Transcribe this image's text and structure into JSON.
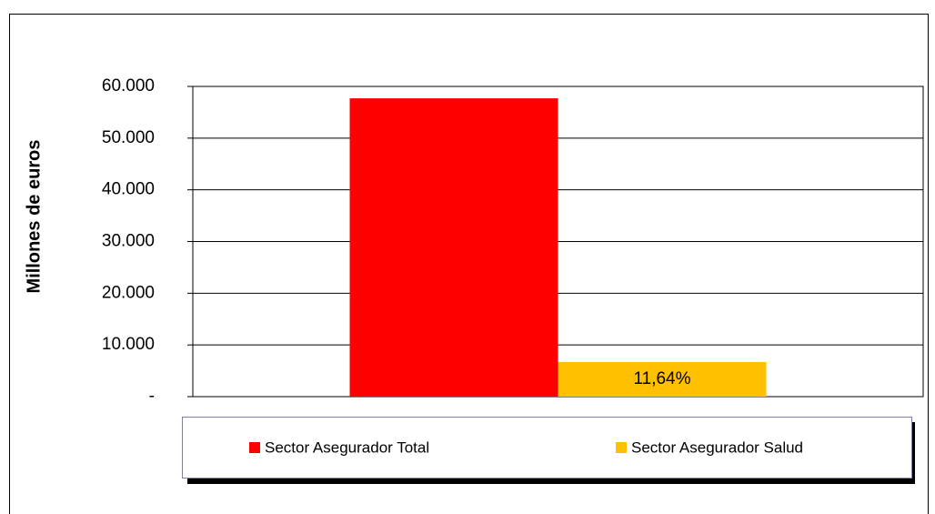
{
  "chart_data": {
    "type": "bar",
    "y_label": "Millones  de euros",
    "categories": [
      null
    ],
    "series": [
      {
        "name": "Sector Asegurador Total",
        "color": "#ff0000",
        "values": [
          57700
        ]
      },
      {
        "name": "Sector Asegurador Salud",
        "color": "#ffc000",
        "values": [
          6700
        ]
      }
    ],
    "annotation": "11,64%",
    "ylim": [
      0,
      60000
    ],
    "yticks": [
      {
        "value": 0,
        "label": "-"
      },
      {
        "value": 10000,
        "label": "10.000"
      },
      {
        "value": 20000,
        "label": "20.000"
      },
      {
        "value": 30000,
        "label": "30.000"
      },
      {
        "value": 40000,
        "label": "40.000"
      },
      {
        "value": 50000,
        "label": "50.000"
      },
      {
        "value": 60000,
        "label": "60.000"
      }
    ],
    "grid": true,
    "legend": "bottom"
  }
}
